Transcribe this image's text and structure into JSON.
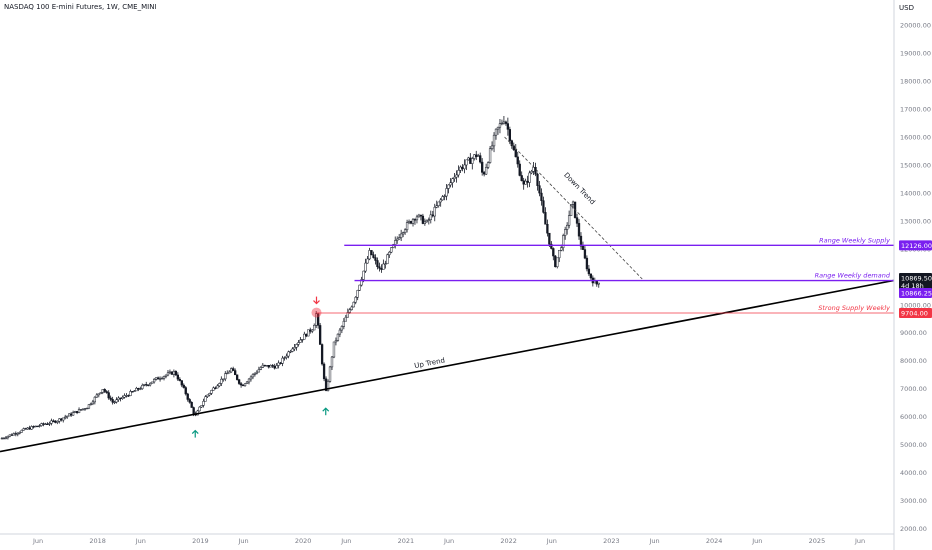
{
  "header": {
    "title": "NASDAQ 100 E-mini Futures, 1W, CME_MINI"
  },
  "chart_data": {
    "type": "candlestick",
    "currency": "USD",
    "ylim": [
      1800,
      20400
    ],
    "y_ticks": [
      2000,
      3000,
      4000,
      5000,
      6000,
      7000,
      8000,
      9000,
      10000,
      11000,
      12000,
      13000,
      14000,
      15000,
      16000,
      17000,
      18000,
      19000,
      20000
    ],
    "y_tick_labels": [
      "2000.00",
      "3000.00",
      "4000.00",
      "5000.00",
      "6000.00",
      "7000.00",
      "8000.00",
      "9000.00",
      "10000.00",
      "11000.00",
      "12000.00",
      "13000.00",
      "14000.00",
      "15000.00",
      "16000.00",
      "17000.00",
      "18000.00",
      "19000.00",
      "20000.00"
    ],
    "x_ticks": [
      {
        "label": "Jun",
        "t": 2017.42
      },
      {
        "label": "2018",
        "t": 2018.0
      },
      {
        "label": "Jun",
        "t": 2018.42
      },
      {
        "label": "2019",
        "t": 2019.0
      },
      {
        "label": "Jun",
        "t": 2019.42
      },
      {
        "label": "2020",
        "t": 2020.0
      },
      {
        "label": "Jun",
        "t": 2020.42
      },
      {
        "label": "2021",
        "t": 2021.0
      },
      {
        "label": "Jun",
        "t": 2021.42
      },
      {
        "label": "2022",
        "t": 2022.0
      },
      {
        "label": "Jun",
        "t": 2022.42
      },
      {
        "label": "2023",
        "t": 2023.0
      },
      {
        "label": "Jun",
        "t": 2023.42
      },
      {
        "label": "2024",
        "t": 2024.0
      },
      {
        "label": "Jun",
        "t": 2024.42
      },
      {
        "label": "2025",
        "t": 2025.0
      },
      {
        "label": "Jun",
        "t": 2025.42
      }
    ],
    "xlim": [
      2017.05,
      2025.75
    ],
    "price_path": [
      [
        2017.05,
        5200
      ],
      [
        2017.3,
        5550
      ],
      [
        2017.6,
        5850
      ],
      [
        2017.9,
        6350
      ],
      [
        2018.05,
        7000
      ],
      [
        2018.15,
        6500
      ],
      [
        2018.4,
        7000
      ],
      [
        2018.6,
        7400
      ],
      [
        2018.75,
        7600
      ],
      [
        2018.85,
        6900
      ],
      [
        2018.95,
        6000
      ],
      [
        2019.05,
        6700
      ],
      [
        2019.3,
        7700
      ],
      [
        2019.4,
        7100
      ],
      [
        2019.6,
        7800
      ],
      [
        2019.75,
        7800
      ],
      [
        2019.9,
        8500
      ],
      [
        2020.1,
        9200
      ],
      [
        2020.13,
        9720
      ],
      [
        2020.17,
        8400
      ],
      [
        2020.22,
        6800
      ],
      [
        2020.3,
        8600
      ],
      [
        2020.5,
        10200
      ],
      [
        2020.65,
        11900
      ],
      [
        2020.75,
        11200
      ],
      [
        2020.95,
        12600
      ],
      [
        2021.1,
        13200
      ],
      [
        2021.2,
        12900
      ],
      [
        2021.35,
        13800
      ],
      [
        2021.5,
        14800
      ],
      [
        2021.7,
        15400
      ],
      [
        2021.75,
        14600
      ],
      [
        2021.88,
        16200
      ],
      [
        2021.96,
        16700
      ],
      [
        2022.05,
        15500
      ],
      [
        2022.15,
        14200
      ],
      [
        2022.25,
        15000
      ],
      [
        2022.35,
        13000
      ],
      [
        2022.45,
        11400
      ],
      [
        2022.55,
        12600
      ],
      [
        2022.62,
        13700
      ],
      [
        2022.7,
        12200
      ],
      [
        2022.78,
        11100
      ],
      [
        2022.85,
        10700
      ],
      [
        2022.88,
        10870
      ]
    ],
    "series": [],
    "annotations": [
      {
        "kind": "trendline",
        "name": "Up Trend",
        "label": "Up Trend",
        "from": [
          2017.05,
          4750
        ],
        "to": [
          2025.75,
          10870
        ],
        "style": "solid",
        "color": "#000000"
      },
      {
        "kind": "trendline",
        "name": "Down Trend",
        "label": "Down Trend",
        "from": [
          2021.96,
          16000
        ],
        "to": [
          2023.3,
          10920
        ],
        "style": "dashed",
        "color": "#444444"
      },
      {
        "kind": "hline",
        "name": "Range Weekly Supply",
        "label": "Range Weekly Supply",
        "y": 12126,
        "from": 2020.4,
        "color": "#7a1ff0"
      },
      {
        "kind": "hline",
        "name": "Range Weekly demand",
        "label": "Range Weekly demand",
        "y": 10866.25,
        "from": 2020.5,
        "color": "#7a1ff0"
      },
      {
        "kind": "hline",
        "name": "Strong Supply Weekly",
        "label": "Strong Supply Weekly",
        "y": 9704,
        "from": 2020.13,
        "color": "#f23645"
      }
    ],
    "markers": [
      {
        "kind": "arrow-up",
        "t": 2018.95,
        "y": 6000,
        "color": "#089981"
      },
      {
        "kind": "arrow-up",
        "t": 2020.22,
        "y": 6800,
        "color": "#089981"
      },
      {
        "kind": "arrow-down",
        "t": 2020.13,
        "y": 9720,
        "color": "#f23645"
      }
    ],
    "price_labels": [
      {
        "text": "12126.00",
        "y": 12126,
        "bg": "#7a1ff0",
        "fg": "#ffffff"
      },
      {
        "text": "10869.50",
        "y": 10955,
        "bg": "#131722",
        "fg": "#ffffff"
      },
      {
        "text": "4d 18h",
        "y": 10690,
        "bg": "#131722",
        "fg": "#ffffff"
      },
      {
        "text": "10866.25",
        "y": 10420,
        "bg": "#7a1ff0",
        "fg": "#ffffff"
      },
      {
        "text": "9704.00",
        "y": 9704,
        "bg": "#f23645",
        "fg": "#ffffff"
      }
    ],
    "colors": {
      "candle": "#131722",
      "axis_text": "#787b86",
      "border": "#d1d4dc",
      "supply": "#7a1ff0",
      "strong_supply": "#f23645"
    }
  }
}
